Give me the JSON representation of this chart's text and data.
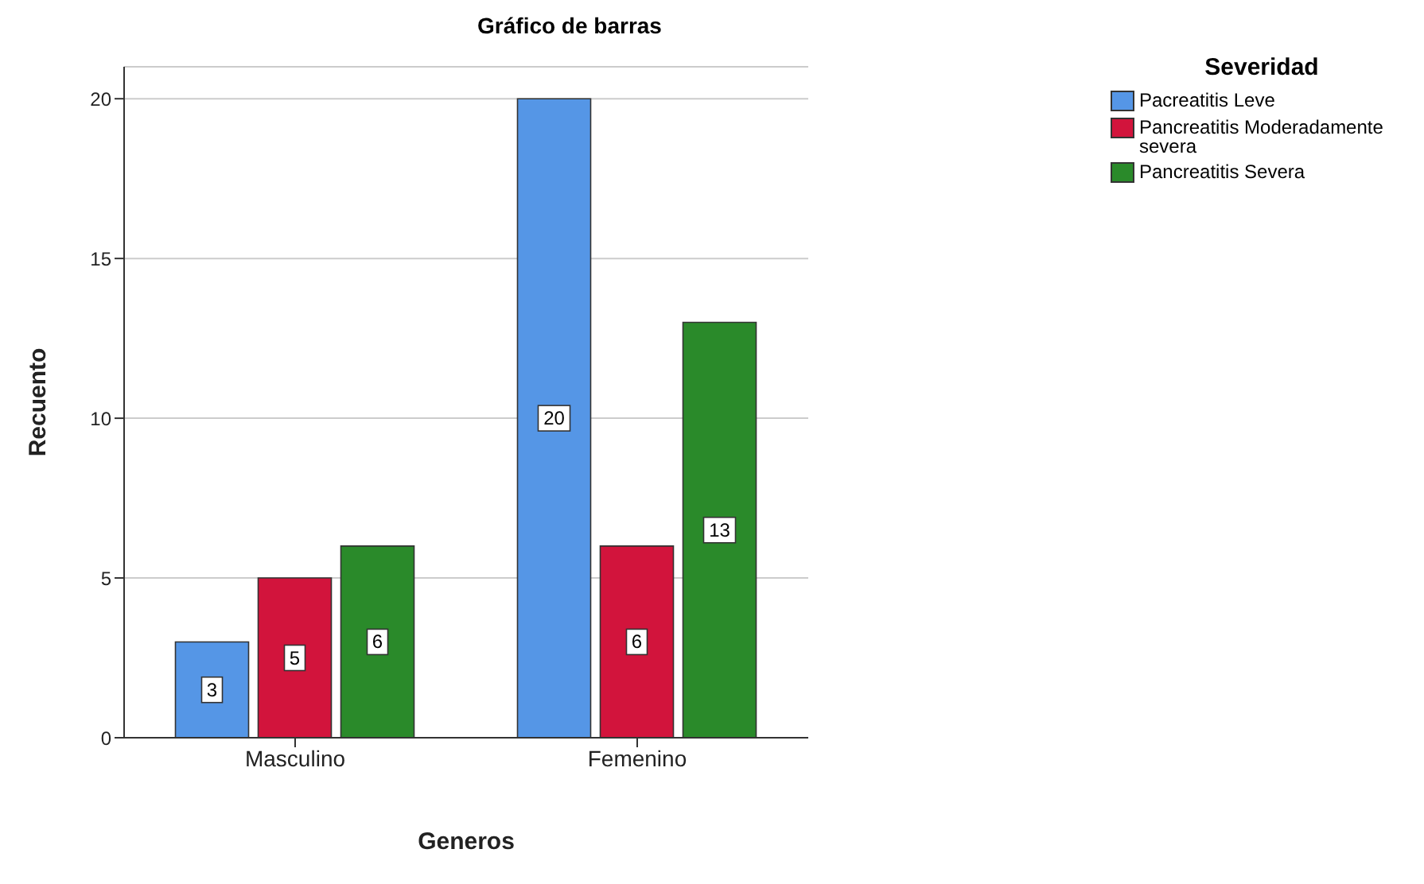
{
  "chart_data": {
    "type": "bar",
    "title": "Gráfico de barras",
    "xlabel": "Generos",
    "ylabel": "Recuento",
    "legend_title": "Severidad",
    "categories": [
      "Masculino",
      "Femenino"
    ],
    "series": [
      {
        "name": "Pacreatitis Leve",
        "color": "#5596e6",
        "values": [
          3,
          20
        ]
      },
      {
        "name": "Pancreatitis Moderadamente severa",
        "color": "#d2143c",
        "values": [
          5,
          6
        ]
      },
      {
        "name": "Pancreatitis Severa",
        "color": "#2a8a2a",
        "values": [
          6,
          13
        ]
      }
    ],
    "ylim": [
      0,
      21
    ],
    "yticks": [
      0,
      5,
      10,
      15,
      20
    ],
    "grid": "y",
    "legend": "top right",
    "data_labels": true
  }
}
